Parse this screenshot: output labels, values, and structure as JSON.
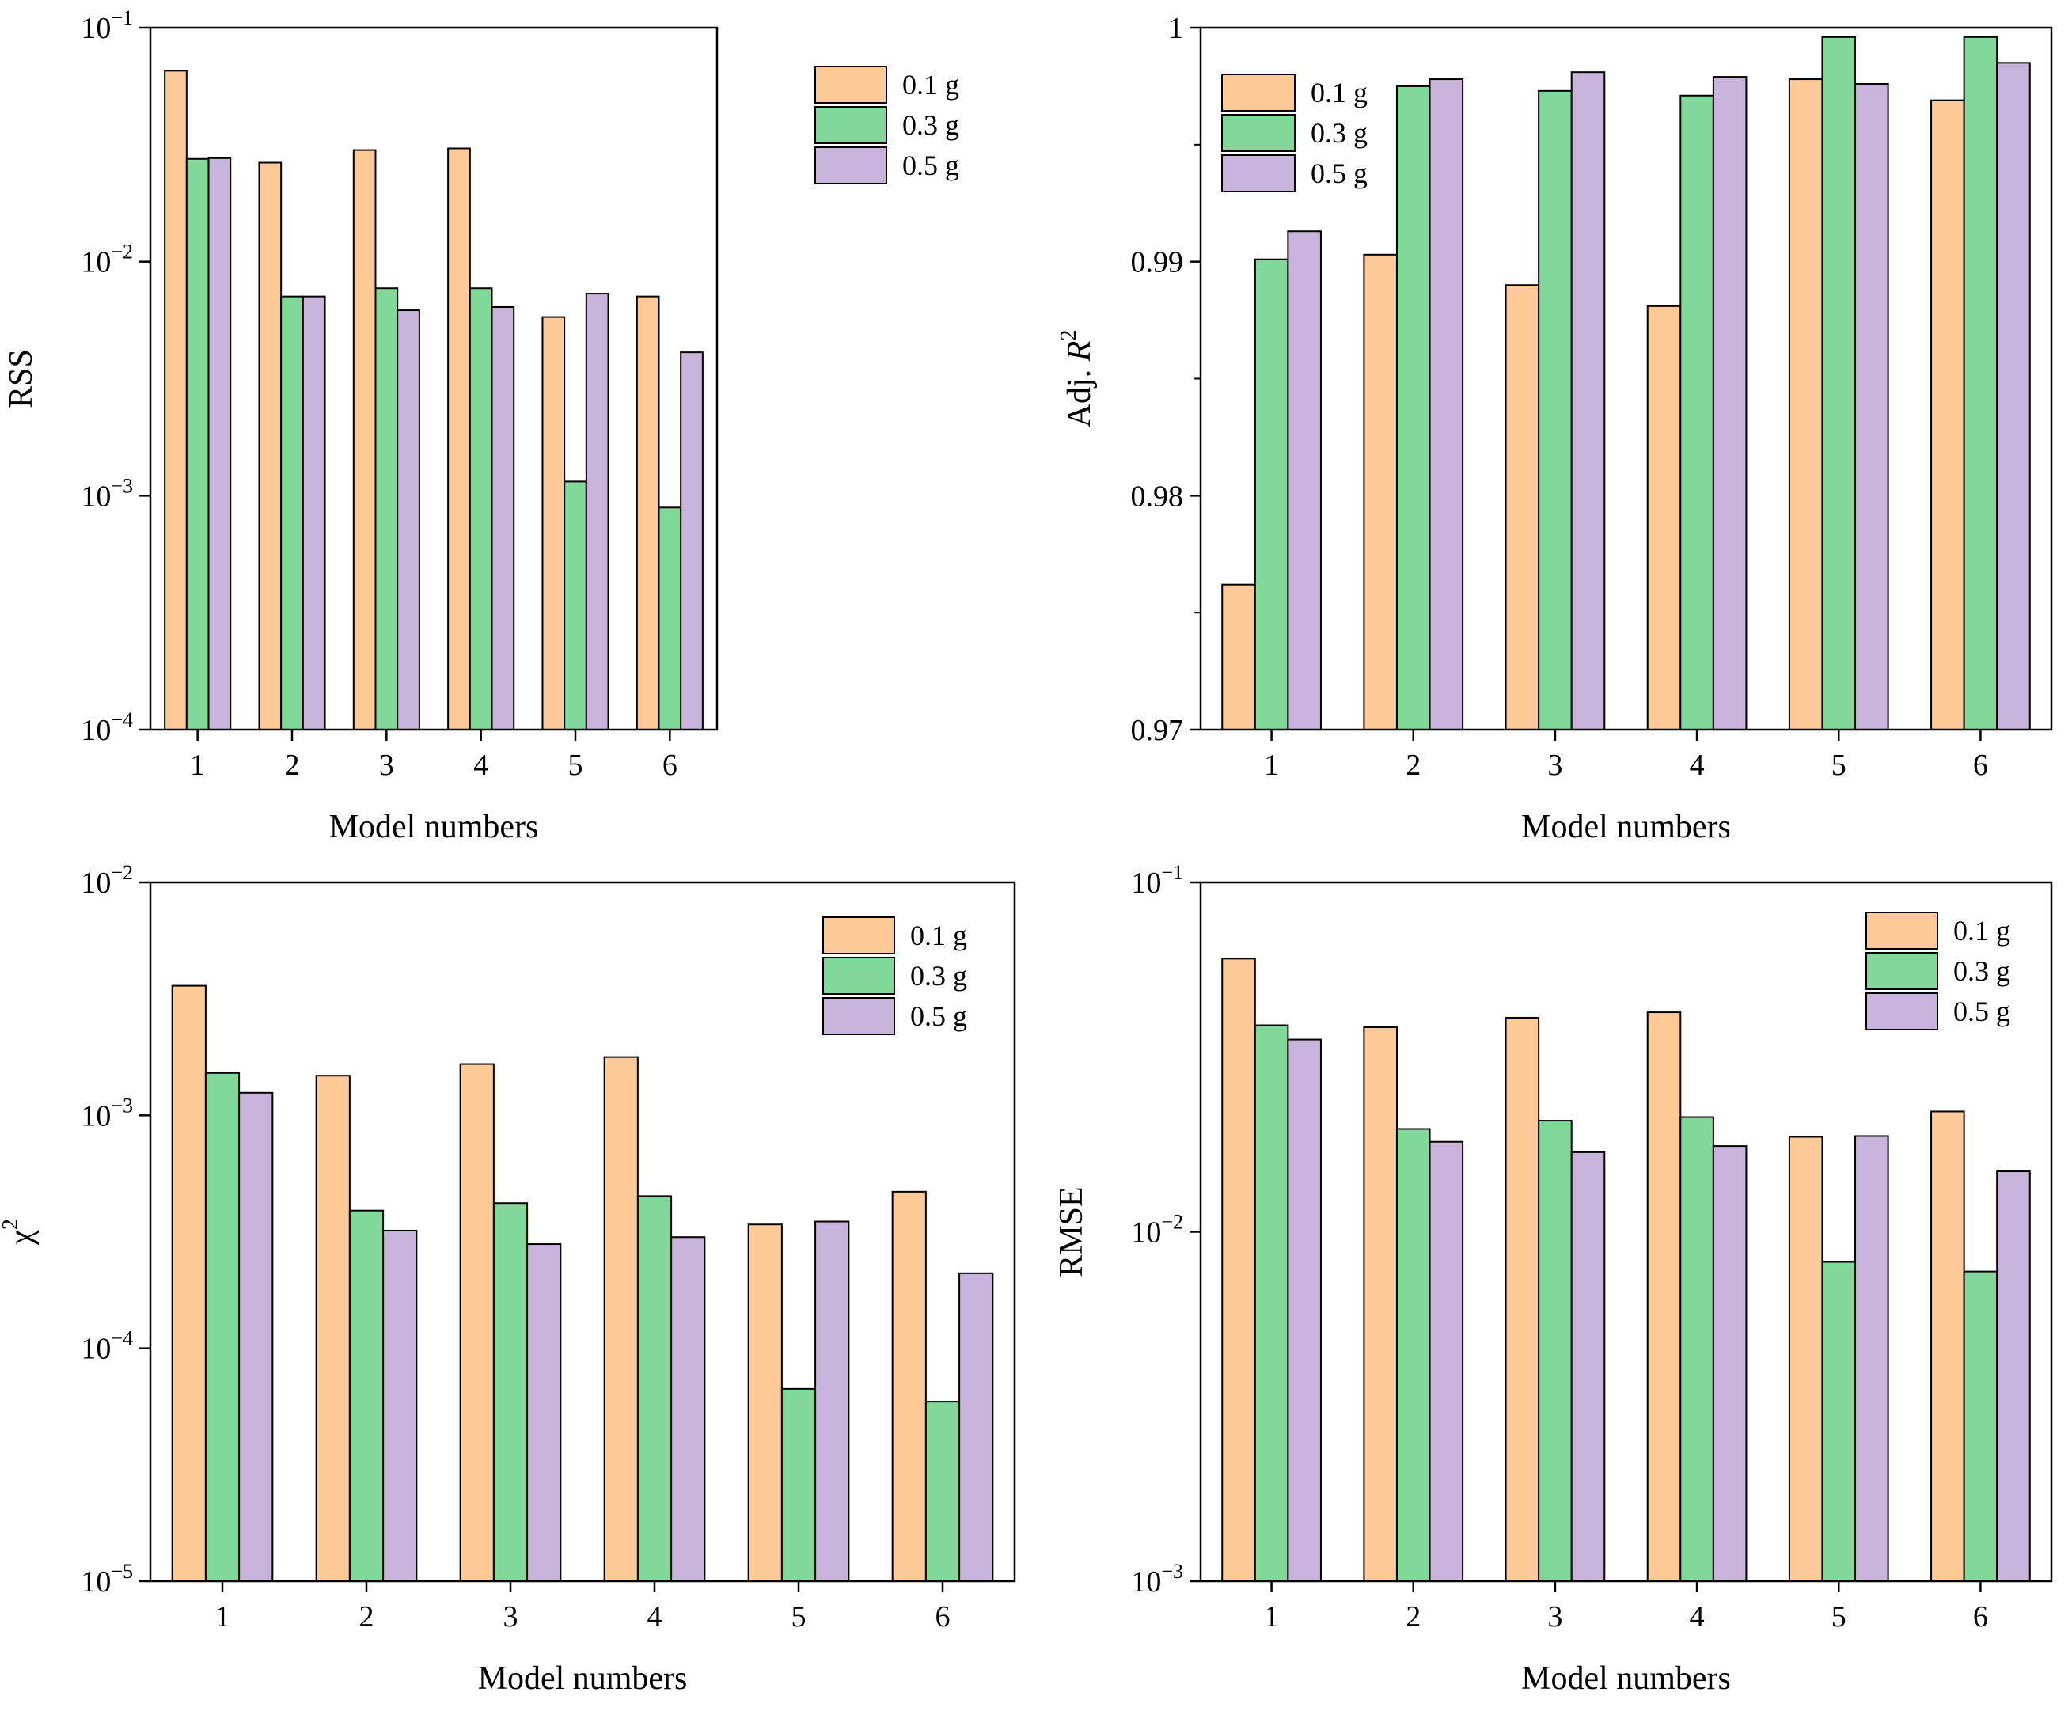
{
  "figure": {
    "background": "#ffffff"
  },
  "chart_data": [
    {
      "type": "bar",
      "scale": "log",
      "ylabel": "RSS",
      "xlabel": "Model numbers",
      "categories": [
        "1",
        "2",
        "3",
        "4",
        "5",
        "6"
      ],
      "ylim": [
        0.0001,
        0.1
      ],
      "yticks": [
        {
          "value": 0.0001,
          "base": "10",
          "exp": "−4"
        },
        {
          "value": 0.001,
          "base": "10",
          "exp": "−3"
        },
        {
          "value": 0.01,
          "base": "10",
          "exp": "−2"
        },
        {
          "value": 0.1,
          "base": "10",
          "exp": "−1"
        }
      ],
      "legend_position": "top-right",
      "series": [
        {
          "name": "0.1 g",
          "color": "#fdc997",
          "values": [
            0.0655,
            0.0265,
            0.03,
            0.0305,
            0.0058,
            0.0071
          ]
        },
        {
          "name": "0.3 g",
          "color": "#80d999",
          "values": [
            0.0275,
            0.0071,
            0.0077,
            0.0077,
            0.00115,
            0.00089
          ]
        },
        {
          "name": "0.5 g",
          "color": "#c8b3da",
          "values": [
            0.0277,
            0.0071,
            0.0062,
            0.0064,
            0.0073,
            0.0041
          ]
        }
      ]
    },
    {
      "type": "bar",
      "scale": "linear",
      "ylabel": "Adj. ",
      "ylabel_italic": "R",
      "ylabel_sup": "2",
      "xlabel": "Model numbers",
      "categories": [
        "1",
        "2",
        "3",
        "4",
        "5",
        "6"
      ],
      "ylim": [
        0.97,
        1.0
      ],
      "yticks": [
        {
          "value": 0.97,
          "label": "0.97"
        },
        {
          "value": 0.98,
          "label": "0.98"
        },
        {
          "value": 0.99,
          "label": "0.99"
        },
        {
          "value": 1.0,
          "label": "1"
        }
      ],
      "minor_ticks": [
        0.975,
        0.985,
        0.995
      ],
      "legend_position": "top-left",
      "series": [
        {
          "name": "0.1 g",
          "color": "#fdc997",
          "values": [
            0.9762,
            0.9903,
            0.989,
            0.9881,
            0.9978,
            0.9969
          ]
        },
        {
          "name": "0.3 g",
          "color": "#80d999",
          "values": [
            0.9901,
            0.9975,
            0.9973,
            0.9971,
            0.9996,
            0.9996
          ]
        },
        {
          "name": "0.5 g",
          "color": "#c8b3da",
          "values": [
            0.9913,
            0.9978,
            0.9981,
            0.9979,
            0.9976,
            0.9985
          ]
        }
      ]
    },
    {
      "type": "bar",
      "scale": "log",
      "ylabel": "χ",
      "ylabel_sup": "2",
      "xlabel": "Model numbers",
      "categories": [
        "1",
        "2",
        "3",
        "4",
        "5",
        "6"
      ],
      "ylim": [
        1e-05,
        0.01
      ],
      "yticks": [
        {
          "value": 1e-05,
          "base": "10",
          "exp": "−5"
        },
        {
          "value": 0.0001,
          "base": "10",
          "exp": "−4"
        },
        {
          "value": 0.001,
          "base": "10",
          "exp": "−3"
        },
        {
          "value": 0.01,
          "base": "10",
          "exp": "−2"
        }
      ],
      "legend_position": "top-right",
      "series": [
        {
          "name": "0.1 g",
          "color": "#fdc997",
          "values": [
            0.0036,
            0.00148,
            0.00166,
            0.00178,
            0.00034,
            0.00047
          ]
        },
        {
          "name": "0.3 g",
          "color": "#80d999",
          "values": [
            0.00152,
            0.00039,
            0.00042,
            0.00045,
            6.7e-05,
            5.9e-05
          ]
        },
        {
          "name": "0.5 g",
          "color": "#c8b3da",
          "values": [
            0.00125,
            0.00032,
            0.00028,
            0.0003,
            0.00035,
            0.00021
          ]
        }
      ]
    },
    {
      "type": "bar",
      "scale": "log",
      "ylabel": "RMSE",
      "xlabel": "Model numbers",
      "categories": [
        "1",
        "2",
        "3",
        "4",
        "5",
        "6"
      ],
      "ylim": [
        0.001,
        0.1
      ],
      "yticks": [
        {
          "value": 0.001,
          "base": "10",
          "exp": "−3"
        },
        {
          "value": 0.01,
          "base": "10",
          "exp": "−2"
        },
        {
          "value": 0.1,
          "base": "10",
          "exp": "−1"
        }
      ],
      "legend_position": "top-right",
      "series": [
        {
          "name": "0.1 g",
          "color": "#fdc997",
          "values": [
            0.0605,
            0.0385,
            0.041,
            0.0425,
            0.0187,
            0.0221
          ]
        },
        {
          "name": "0.3 g",
          "color": "#80d999",
          "values": [
            0.039,
            0.0197,
            0.0208,
            0.0213,
            0.0082,
            0.0077
          ]
        },
        {
          "name": "0.5 g",
          "color": "#c8b3da",
          "values": [
            0.0355,
            0.0181,
            0.0169,
            0.0176,
            0.0188,
            0.0149
          ]
        }
      ]
    }
  ]
}
